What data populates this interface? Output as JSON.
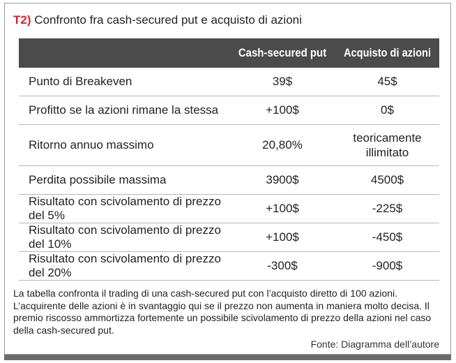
{
  "title": {
    "tag": "T2)",
    "text": "Confronto fra cash-secured put e acquisto di azioni"
  },
  "table": {
    "headers": [
      "",
      "Cash-secured put",
      "Acquisto di azioni"
    ],
    "rows": [
      {
        "label": "Punto di Breakeven",
        "csp": "39$",
        "azioni": "45$"
      },
      {
        "label": "Profitto se la azioni rimane la stessa",
        "csp": "+100$",
        "azioni": "0$"
      },
      {
        "label": "Ritorno annuo massimo",
        "csp": "20,80%",
        "azioni_line1": "teoricamente",
        "azioni_line2": "illimitato"
      },
      {
        "label": "Perdita possibile massima",
        "csp": "3900$",
        "azioni": "4500$"
      },
      {
        "label": "Risultato con scivolamento di prezzo del 5%",
        "csp": "+100$",
        "azioni": "-225$"
      },
      {
        "label": "Risultato con scivolamento di prezzo del 10%",
        "csp": "+100$",
        "azioni": "-450$"
      },
      {
        "label": "Risultato con scivolamento di prezzo del 20%",
        "csp": "-300$",
        "azioni": "-900$"
      }
    ]
  },
  "caption": "La tabella confronta il trading di una cash-secured put con l’acquisto diretto di 100 azioni. L’acquirente delle azioni è in svantaggio qui se il prezzo non aumenta in maniera molto decisa. Il premio riscosso ammortizza fortemente un possibile scivolamento di prezzo della azioni nel caso della cash-secured put.",
  "source": "Fonte: Diagramma dell’autore",
  "colors": {
    "tag": "#d2232a",
    "header_bg": "#4b4b4b",
    "bottom_band": "#6b6b6b"
  }
}
